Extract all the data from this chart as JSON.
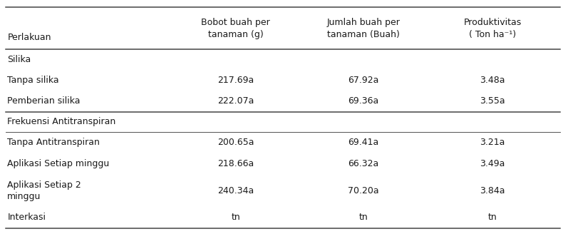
{
  "col_headers_line1": [
    "Perlakuan",
    "Bobot buah per",
    "Jumlah buah per",
    "Produktivitas"
  ],
  "col_headers_line2": [
    "",
    "tanaman (g)",
    "tanaman (Buah)",
    "( Ton ha⁻¹)"
  ],
  "rows": [
    {
      "label": "Silika",
      "values": [
        "",
        "",
        ""
      ],
      "is_section": true
    },
    {
      "label": "Tanpa silika",
      "values": [
        "217.69a",
        "67.92a",
        "3.48a"
      ],
      "is_section": false,
      "wrap": false
    },
    {
      "label": "Pemberian silika",
      "values": [
        "222.07a",
        "69.36a",
        "3.55a"
      ],
      "is_section": false,
      "wrap": false
    },
    {
      "label": "Frekuensi Antitranspiran",
      "values": [
        "",
        "",
        ""
      ],
      "is_section": true
    },
    {
      "label": "Tanpa Antitranspiran",
      "values": [
        "200.65a",
        "69.41a",
        "3.21a"
      ],
      "is_section": false,
      "wrap": false
    },
    {
      "label": "Aplikasi Setiap minggu",
      "values": [
        "218.66a",
        "66.32a",
        "3.49a"
      ],
      "is_section": false,
      "wrap": false
    },
    {
      "label": "Aplikasi Setiap 2\nminggu",
      "values": [
        "240.34a",
        "70.20a",
        "3.84a"
      ],
      "is_section": false,
      "wrap": true
    },
    {
      "label": "Interkasi",
      "values": [
        "tn",
        "tn",
        "tn"
      ],
      "is_section": false,
      "wrap": false
    }
  ],
  "font_size": 9.0,
  "bg_color": "#ffffff",
  "text_color": "#1a1a1a",
  "line_color": "#444444"
}
